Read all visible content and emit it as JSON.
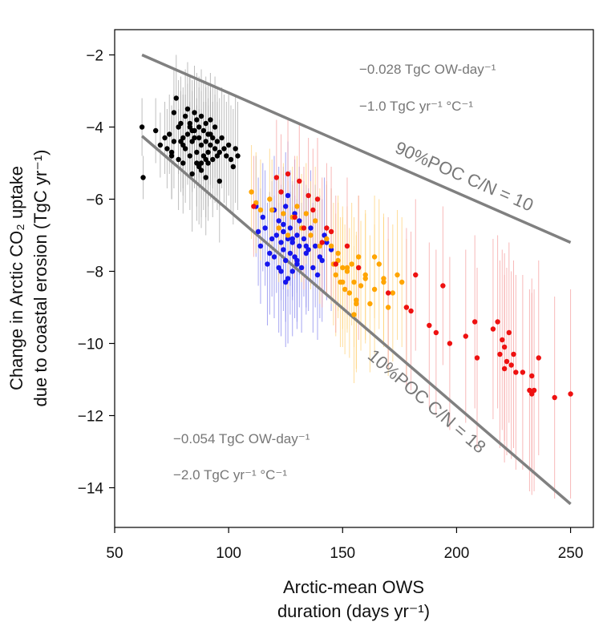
{
  "chart_data": {
    "type": "scatter",
    "title": "",
    "xlabel_line1": "Arctic-mean OWS",
    "xlabel_line2": "duration (days yr⁻¹)",
    "ylabel_line1": "Change in Arctic CO₂ uptake",
    "ylabel_line2": "due to coastal erosion (TgC yr⁻¹)",
    "xlim": [
      50,
      260
    ],
    "ylim": [
      -15.1,
      -1.3
    ],
    "xticks": [
      50,
      100,
      150,
      200,
      250
    ],
    "yticks": [
      -2,
      -4,
      -6,
      -8,
      -10,
      -12,
      -14
    ],
    "grid": false,
    "colors": {
      "black": "#000000",
      "blue": "#1515ee",
      "orange": "#ffa500",
      "red": "#ee1111",
      "boundary": "#808080",
      "annotation": "#777777"
    },
    "upper_line": {
      "label": "90%POC C/N = 10",
      "x": [
        62,
        250
      ],
      "y": [
        -2.0,
        -7.2
      ],
      "slope_label": "−0.028 TgC OW-day⁻¹",
      "sensitivity_label": "−1.0 TgC yr⁻¹ °C⁻¹"
    },
    "lower_line": {
      "label": "10%POC C/N = 18",
      "x": [
        62,
        250
      ],
      "y": [
        -4.25,
        -14.45
      ],
      "slope_label": "−0.054 TgC OW-day⁻¹",
      "sensitivity_label": "−2.0 TgC yr⁻¹ °C⁻¹"
    },
    "series": [
      {
        "name": "black",
        "color": "#000000",
        "error_color": "#a8a8a8",
        "x": [
          62,
          62.5,
          68,
          70,
          72,
          73,
          74,
          75,
          76,
          76,
          77,
          78,
          78,
          79,
          80,
          80,
          81,
          81,
          82,
          82,
          83,
          83,
          84,
          84,
          85,
          85,
          86,
          86,
          86,
          87,
          87,
          88,
          88,
          88,
          89,
          89,
          90,
          90,
          90,
          91,
          91,
          92,
          92,
          93,
          93,
          94,
          94,
          95,
          96,
          96,
          97,
          98,
          99,
          100,
          101,
          102,
          103,
          104,
          75,
          80,
          85,
          90,
          95,
          83,
          87,
          91,
          79,
          84,
          88,
          92
        ],
        "y": [
          -4.0,
          -5.4,
          -4.1,
          -4.5,
          -4.3,
          -4.6,
          -4.2,
          -4.8,
          -3.6,
          -4.4,
          -3.2,
          -4.0,
          -4.9,
          -3.9,
          -4.3,
          -5.0,
          -3.7,
          -4.6,
          -3.5,
          -4.2,
          -4.8,
          -3.9,
          -4.4,
          -5.3,
          -3.6,
          -4.1,
          -4.7,
          -3.8,
          -5.0,
          -4.3,
          -4.0,
          -3.7,
          -4.5,
          -5.2,
          -4.1,
          -4.8,
          -3.9,
          -4.4,
          -4.9,
          -4.2,
          -5.0,
          -4.5,
          -3.8,
          -4.3,
          -4.9,
          -4.6,
          -4.0,
          -4.4,
          -4.7,
          -5.5,
          -4.3,
          -4.6,
          -4.8,
          -4.5,
          -4.9,
          -5.1,
          -4.6,
          -4.8,
          -4.7,
          -4.5,
          -4.3,
          -5.4,
          -4.8,
          -4.0,
          -5.1,
          -4.7,
          -4.4,
          -4.1,
          -5.0,
          -4.2
        ],
        "err": [
          0.8,
          0.6,
          0.9,
          0.9,
          1.0,
          1.1,
          1.1,
          1.2,
          1.2,
          1.3,
          1.2,
          1.3,
          1.4,
          1.3,
          1.4,
          1.4,
          1.3,
          1.5,
          1.3,
          1.4,
          1.5,
          1.3,
          1.4,
          1.6,
          1.3,
          1.4,
          1.5,
          1.3,
          1.6,
          1.4,
          1.4,
          1.3,
          1.5,
          1.6,
          1.4,
          1.5,
          1.3,
          1.5,
          1.6,
          1.4,
          1.6,
          1.5,
          1.3,
          1.4,
          1.6,
          1.5,
          1.4,
          1.5,
          1.5,
          1.7,
          1.4,
          1.5,
          1.5,
          1.4,
          1.5,
          1.6,
          1.5,
          1.5,
          1.3,
          1.4,
          1.4,
          1.6,
          1.5,
          1.4,
          1.6,
          1.5,
          1.4,
          1.4,
          1.5,
          1.4
        ]
      },
      {
        "name": "blue",
        "color": "#1515ee",
        "error_color": "#8888ee",
        "x": [
          112,
          113,
          114,
          115,
          116,
          117,
          118,
          119,
          120,
          120,
          121,
          122,
          122,
          123,
          123,
          124,
          124,
          125,
          125,
          125,
          126,
          126,
          127,
          127,
          128,
          128,
          129,
          129,
          130,
          130,
          131,
          131,
          132,
          133,
          134,
          135,
          136,
          137,
          138,
          139,
          140,
          141,
          142,
          143,
          145,
          124,
          128,
          126,
          130,
          134
        ],
        "y": [
          -6.2,
          -6.9,
          -7.3,
          -6.5,
          -6.8,
          -7.8,
          -7.5,
          -7.1,
          -6.3,
          -7.6,
          -7.0,
          -6.6,
          -7.9,
          -7.2,
          -8.0,
          -6.9,
          -7.4,
          -6.2,
          -7.7,
          -8.3,
          -7.1,
          -5.9,
          -7.5,
          -6.8,
          -7.2,
          -8.0,
          -6.4,
          -7.6,
          -7.0,
          -7.8,
          -6.6,
          -7.3,
          -7.9,
          -7.1,
          -7.5,
          -7.4,
          -6.8,
          -7.9,
          -7.3,
          -8.1,
          -7.6,
          -7.7,
          -7.0,
          -7.2,
          -7.4,
          -6.7,
          -7.1,
          -8.2,
          -7.7,
          -7.3
        ],
        "err": [
          1.4,
          1.5,
          1.6,
          1.5,
          1.6,
          1.7,
          1.7,
          1.6,
          1.5,
          1.7,
          1.6,
          1.5,
          1.8,
          1.6,
          1.8,
          1.6,
          1.7,
          1.5,
          1.7,
          1.8,
          1.6,
          1.5,
          1.7,
          1.6,
          1.6,
          1.8,
          1.5,
          1.7,
          1.6,
          1.8,
          1.5,
          1.7,
          1.8,
          1.6,
          1.7,
          1.7,
          1.6,
          1.8,
          1.7,
          1.8,
          1.7,
          1.7,
          1.6,
          1.6,
          1.7,
          1.6,
          1.6,
          1.8,
          1.7,
          1.7
        ]
      },
      {
        "name": "orange",
        "color": "#ffa500",
        "error_color": "#ffd27a",
        "x": [
          110,
          112,
          114,
          118,
          119,
          122,
          124,
          126,
          128,
          130,
          132,
          134,
          136,
          138,
          140,
          143,
          145,
          146,
          147,
          148,
          149,
          150,
          151,
          152,
          153,
          154,
          155,
          156,
          157,
          158,
          160,
          162,
          164,
          166,
          168,
          170,
          172,
          174,
          176,
          178,
          148,
          152,
          156,
          160,
          164,
          168,
          150,
          155
        ],
        "y": [
          -5.8,
          -6.1,
          -6.3,
          -6.0,
          -6.3,
          -6.8,
          -6.4,
          -7.0,
          -6.5,
          -6.2,
          -6.8,
          -6.4,
          -7.0,
          -6.6,
          -7.3,
          -7.1,
          -7.3,
          -7.8,
          -8.1,
          -7.7,
          -8.3,
          -7.9,
          -8.5,
          -8.0,
          -8.6,
          -7.8,
          -8.3,
          -8.8,
          -7.6,
          -8.4,
          -8.2,
          -8.9,
          -8.5,
          -7.8,
          -8.3,
          -9.0,
          -8.6,
          -8.1,
          -8.3,
          -9.0,
          -7.5,
          -7.9,
          -8.9,
          -8.1,
          -7.6,
          -8.2,
          -8.3,
          -9.2
        ],
        "err": [
          1.3,
          1.4,
          1.4,
          1.4,
          1.4,
          1.5,
          1.4,
          1.5,
          1.4,
          1.4,
          1.5,
          1.4,
          1.5,
          1.5,
          1.6,
          1.6,
          1.6,
          1.7,
          1.7,
          1.6,
          1.8,
          1.7,
          1.8,
          1.7,
          1.8,
          1.7,
          1.8,
          1.9,
          1.7,
          1.8,
          1.8,
          1.9,
          1.8,
          1.8,
          1.8,
          1.9,
          1.9,
          1.8,
          1.8,
          1.9,
          1.6,
          1.7,
          1.9,
          1.8,
          1.7,
          1.8,
          1.8,
          1.9
        ]
      },
      {
        "name": "red",
        "color": "#ee1111",
        "error_color": "#f5a0a0",
        "x": [
          111,
          121,
          123,
          126,
          129,
          131,
          133,
          135,
          137,
          139,
          141,
          143,
          145,
          147,
          152,
          157,
          170,
          178,
          180,
          182,
          188,
          191,
          194,
          197,
          204,
          208,
          209,
          216,
          218,
          219,
          220,
          221,
          221,
          222,
          223,
          224,
          225,
          226,
          229,
          232,
          233,
          234,
          236,
          243,
          250,
          233
        ],
        "y": [
          -6.2,
          -5.4,
          -5.8,
          -5.3,
          -6.5,
          -5.5,
          -6.8,
          -5.9,
          -6.3,
          -6.0,
          -7.2,
          -6.8,
          -6.9,
          -7.8,
          -7.3,
          -7.9,
          -8.6,
          -9.0,
          -9.1,
          -8.1,
          -9.5,
          -9.7,
          -8.4,
          -10.0,
          -9.8,
          -9.4,
          -10.4,
          -9.6,
          -9.4,
          -10.3,
          -9.9,
          -10.1,
          -10.7,
          -10.5,
          -9.7,
          -10.6,
          -10.3,
          -10.8,
          -10.8,
          -11.3,
          -11.4,
          -11.3,
          -10.4,
          -11.5,
          -11.4,
          -10.9
        ],
        "err": [
          1.4,
          1.6,
          1.6,
          1.5,
          1.7,
          1.6,
          1.7,
          1.6,
          1.7,
          1.7,
          1.8,
          1.8,
          1.8,
          1.9,
          1.9,
          2.0,
          2.1,
          2.2,
          2.2,
          2.1,
          2.3,
          2.3,
          2.2,
          2.4,
          2.4,
          2.4,
          2.5,
          2.5,
          2.4,
          2.6,
          2.5,
          2.6,
          2.6,
          2.6,
          2.5,
          2.6,
          2.6,
          2.7,
          2.7,
          2.8,
          2.8,
          2.8,
          2.7,
          2.8,
          2.9,
          2.7
        ]
      }
    ]
  }
}
